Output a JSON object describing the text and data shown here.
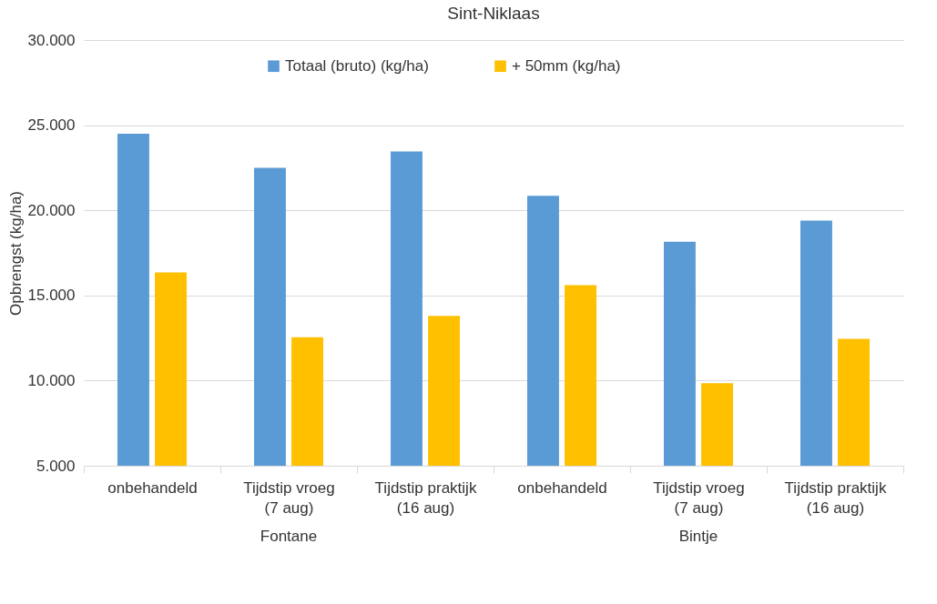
{
  "chart_data": {
    "type": "bar",
    "title": "Sint-Niklaas",
    "ylabel": "Opbrengst (kg/ha)",
    "categories": [
      "onbehandeld",
      "Tijdstip vroeg (7 aug)",
      "Tijdstip praktijk (16 aug)",
      "onbehandeld",
      "Tijdstip vroeg (7 aug)",
      "Tijdstip praktijk (16 aug)"
    ],
    "series": [
      {
        "name": "Totaal (bruto) (kg/ha)",
        "color": "#5b9bd5",
        "values": [
          24500,
          22500,
          23450,
          20850,
          18150,
          19400
        ]
      },
      {
        "name": "+ 50mm (kg/ha)",
        "color": "#ffc000",
        "values": [
          16350,
          12550,
          13800,
          15600,
          9850,
          12450
        ]
      }
    ],
    "ylim": [
      5000,
      30000
    ],
    "yticks": [
      {
        "value": 5000,
        "label": "5.000"
      },
      {
        "value": 10000,
        "label": "10.000"
      },
      {
        "value": 15000,
        "label": "15.000"
      },
      {
        "value": 20000,
        "label": "20.000"
      },
      {
        "value": 25000,
        "label": "25.000"
      },
      {
        "value": 30000,
        "label": "30.000"
      }
    ],
    "annotations": [
      "Fontane",
      "Bintje"
    ],
    "grid": "y",
    "legend": "top"
  }
}
